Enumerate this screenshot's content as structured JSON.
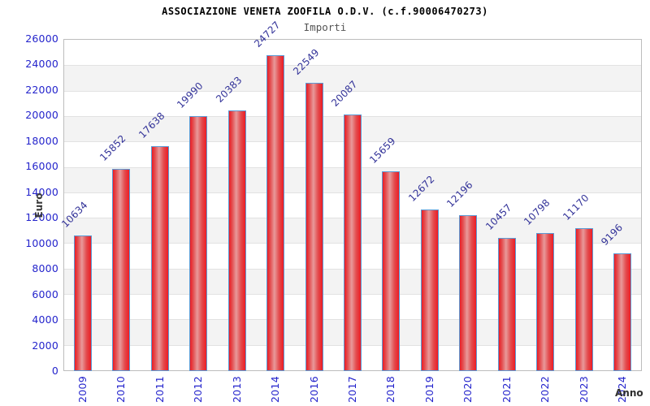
{
  "header": {
    "title": "ASSOCIAZIONE VENETA ZOOFILA O.D.V. (c.f.90006470273)",
    "subtitle": "Importi"
  },
  "chart_data": {
    "type": "bar",
    "title": "ASSOCIAZIONE VENETA ZOOFILA O.D.V. (c.f.90006470273)",
    "subtitle": "Importi",
    "xlabel": "Anno",
    "ylabel": "Euro",
    "categories": [
      "2009",
      "2010",
      "2011",
      "2012",
      "2013",
      "2014",
      "2016",
      "2017",
      "2018",
      "2019",
      "2020",
      "2021",
      "2022",
      "2023",
      "2024"
    ],
    "values": [
      10634,
      15852,
      17638,
      19990,
      20383,
      24727,
      22549,
      20087,
      15659,
      12672,
      12196,
      10457,
      10798,
      11170,
      9196
    ],
    "ylim": [
      0,
      26000
    ],
    "ytick_step": 2000,
    "grid": "horizontal-on",
    "legend": "none",
    "background_bands": "alternating white / light gray every 2000",
    "colors": {
      "bar_fill": "#ed1c24",
      "bar_highlight": "#e8999a",
      "bar_border": "#5b9bd5",
      "tick_label": "#2424cc",
      "value_label": "#333399",
      "band_alt": "#f3f3f3",
      "grid_line": "#e2e2e2",
      "subtitle": "#555555",
      "axis_title": "#3a3a3a"
    }
  }
}
